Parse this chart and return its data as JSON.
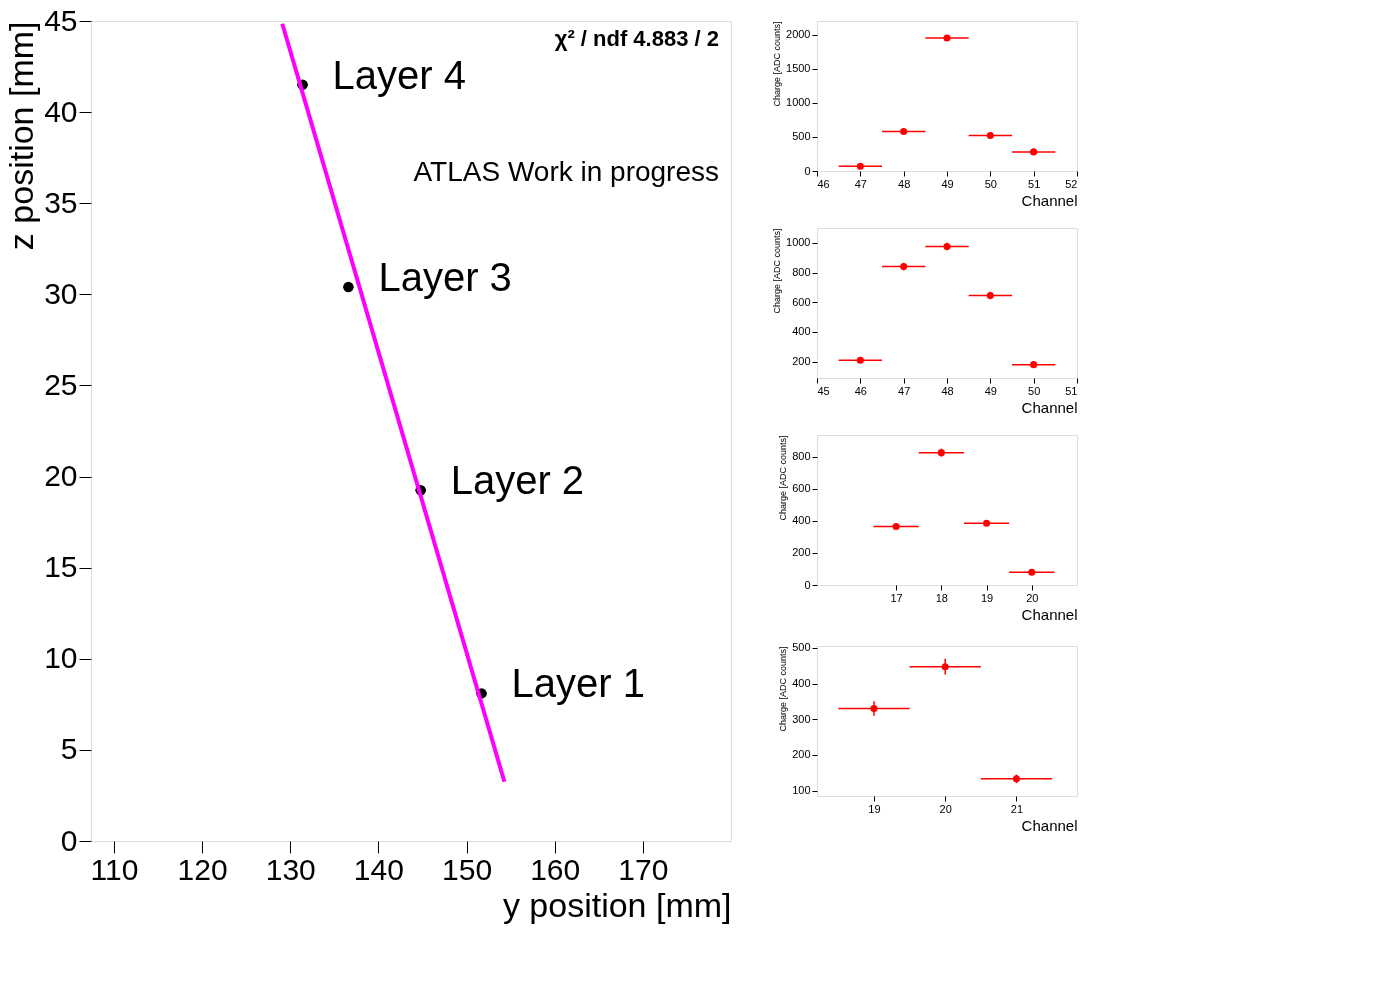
{
  "chart_data": [
    {
      "type": "scatter",
      "xlabel": "y position [mm]",
      "ylabel": "z position [mm]",
      "xlim": [
        107.4,
        180
      ],
      "ylim": [
        0,
        45
      ],
      "xticks": [
        110,
        120,
        130,
        140,
        150,
        160,
        170
      ],
      "yticks": [
        0,
        5,
        10,
        15,
        20,
        25,
        30,
        35,
        40,
        45
      ],
      "series": [
        {
          "type": "scatter",
          "marker": "circle",
          "color": "#000000",
          "x": [
            131.4,
            136.6,
            144.8,
            151.7
          ],
          "values": [
            41.5,
            30.4,
            19.25,
            8.1
          ],
          "xerrors": [
            0.6,
            0.6,
            0.6,
            0.6
          ]
        },
        {
          "type": "line",
          "color": "#ff00ff",
          "x": [
            129.1,
            154.3
          ],
          "values": [
            44.85,
            3.25
          ]
        }
      ],
      "annotations": [
        {
          "text": "Layer 4",
          "x": 131.4,
          "y": 41.5
        },
        {
          "text": "Layer 3",
          "x": 136.6,
          "y": 30.4
        },
        {
          "text": "Layer 2",
          "x": 144.8,
          "y": 19.25
        },
        {
          "text": "Layer 1",
          "x": 151.7,
          "y": 8.1
        },
        "χ² / ndf 4.883 / 2",
        "ATLAS Work in progress"
      ]
    },
    {
      "type": "scatter",
      "xlabel": "Channel",
      "ylabel": "Charge [ADC counts]",
      "marker": "circle",
      "xlim": [
        46,
        52
      ],
      "ylim": [
        0,
        2200
      ],
      "xticks": [
        46,
        47,
        48,
        49,
        50,
        51,
        52
      ],
      "yticks": [
        0,
        500,
        1000,
        1500,
        2000
      ],
      "series": [
        {
          "color": "#ff0000",
          "x": [
            47,
            48,
            49,
            50,
            51
          ],
          "values": [
            70,
            580,
            1950,
            520,
            280
          ],
          "xerrors": [
            0.5,
            0.5,
            0.5,
            0.5,
            0.5
          ]
        }
      ]
    },
    {
      "type": "scatter",
      "xlabel": "Channel",
      "ylabel": "Charge [ADC counts]",
      "marker": "circle",
      "xlim": [
        45,
        51
      ],
      "ylim": [
        90,
        1100
      ],
      "xticks": [
        45,
        46,
        47,
        48,
        49,
        50,
        51
      ],
      "yticks": [
        200,
        400,
        600,
        800,
        1000
      ],
      "series": [
        {
          "color": "#ff0000",
          "x": [
            46,
            47,
            48,
            49,
            50
          ],
          "values": [
            210,
            840,
            975,
            645,
            180
          ],
          "xerrors": [
            0.5,
            0.5,
            0.5,
            0.5,
            0.5
          ],
          "errors": [
            15,
            25,
            25,
            25,
            15
          ]
        }
      ]
    },
    {
      "type": "scatter",
      "xlabel": "Channel",
      "ylabel": "Charge [ADC counts]",
      "marker": "circle",
      "xlim": [
        15.25,
        21
      ],
      "ylim": [
        0,
        935
      ],
      "xticks": [
        17,
        18,
        19,
        20
      ],
      "yticks": [
        0,
        200,
        400,
        600,
        800
      ],
      "series": [
        {
          "color": "#ff0000",
          "x": [
            17,
            18,
            19,
            20
          ],
          "values": [
            365,
            825,
            385,
            80
          ],
          "xerrors": [
            0.5,
            0.5,
            0.5,
            0.5
          ],
          "errors": [
            15,
            25,
            15,
            10
          ]
        }
      ]
    },
    {
      "type": "scatter",
      "xlabel": "Channel",
      "ylabel": "Charge [ADC counts]",
      "marker": "circle",
      "xlim": [
        18.2,
        21.85
      ],
      "ylim": [
        85,
        505
      ],
      "xticks": [
        19,
        20,
        21
      ],
      "yticks": [
        100,
        200,
        300,
        400,
        500
      ],
      "series": [
        {
          "color": "#ff0000",
          "x": [
            19,
            20,
            21
          ],
          "values": [
            330,
            447,
            133
          ],
          "xerrors": [
            0.5,
            0.5,
            0.5
          ],
          "errors": [
            20,
            22,
            12
          ]
        }
      ]
    }
  ]
}
